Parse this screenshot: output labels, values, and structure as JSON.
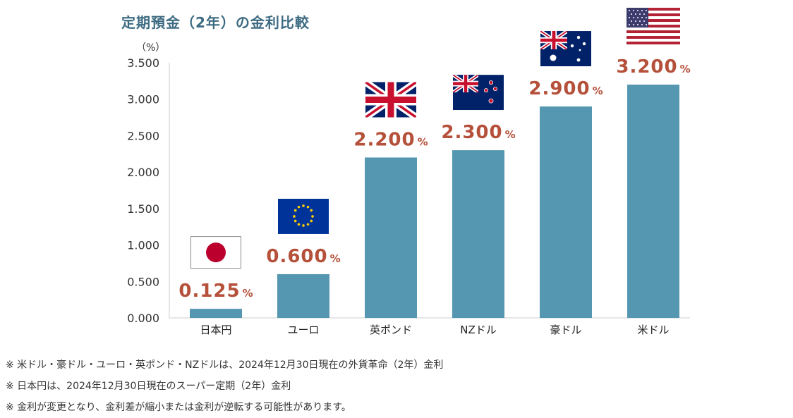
{
  "chart_data": {
    "type": "bar",
    "title": "定期預金（2年）の金利比較",
    "ylabel": "（%）",
    "xlabel": "",
    "ylim": [
      0,
      3.5
    ],
    "yticks": [
      "0.000",
      "0.500",
      "1.000",
      "1.500",
      "2.000",
      "2.500",
      "3.000",
      "3.500"
    ],
    "categories": [
      "日本円",
      "ユーロ",
      "英ポンド",
      "NZドル",
      "豪ドル",
      "米ドル"
    ],
    "values": [
      0.125,
      0.6,
      2.2,
      2.3,
      2.9,
      3.2
    ],
    "value_labels": [
      "0.125",
      "0.600",
      "2.200",
      "2.300",
      "2.900",
      "3.200"
    ],
    "value_unit": "%",
    "flags": [
      "japan-flag-icon",
      "eu-flag-icon",
      "uk-flag-icon",
      "nz-flag-icon",
      "australia-flag-icon",
      "us-flag-icon"
    ],
    "bar_color": "#5597b0",
    "label_color": "#b5503a",
    "grid": false
  },
  "notes": [
    "※ 米ドル・豪ドル・ユーロ・英ポンド・NZドルは、2024年12月30日現在の外貨革命（2年）金利",
    "※ 日本円は、2024年12月30日現在のスーパー定期（2年）金利",
    "※ 金利が変更となり、金利差が縮小または金利が逆転する可能性があります。"
  ]
}
